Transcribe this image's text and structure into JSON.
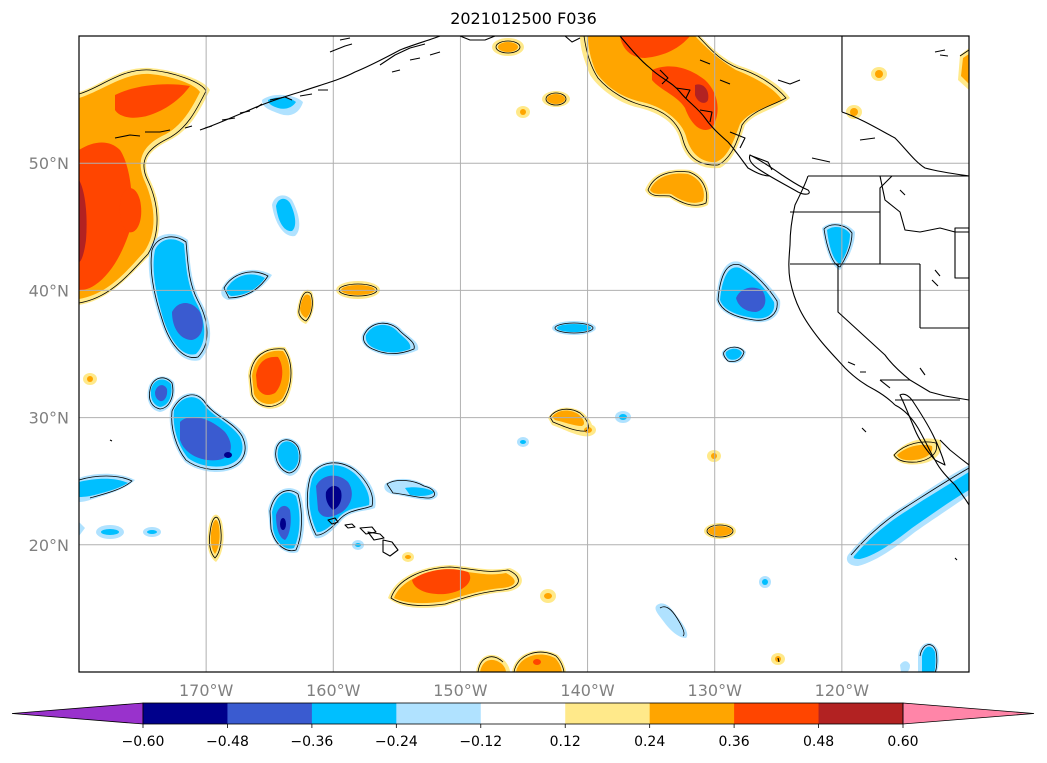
{
  "title": "2021012500 F036",
  "map": {
    "lon_range": [
      -180,
      -110
    ],
    "lat_range": [
      10,
      60
    ],
    "grid": true,
    "lat_ticks": [
      {
        "value": 20,
        "label": "20°N"
      },
      {
        "value": 30,
        "label": "30°N"
      },
      {
        "value": 40,
        "label": "40°N"
      },
      {
        "value": 50,
        "label": "50°N"
      }
    ],
    "lon_ticks": [
      {
        "value": -170,
        "label": "170°W"
      },
      {
        "value": -160,
        "label": "160°W"
      },
      {
        "value": -150,
        "label": "150°W"
      },
      {
        "value": -140,
        "label": "140°W"
      },
      {
        "value": -130,
        "label": "130°W"
      },
      {
        "value": -120,
        "label": "120°W"
      }
    ]
  },
  "colorbar": {
    "levels": [
      "−0.60",
      "−0.48",
      "−0.36",
      "−0.24",
      "−0.12",
      "0.12",
      "0.24",
      "0.36",
      "0.48",
      "0.60"
    ],
    "colors": [
      "#9932cc",
      "#00008b",
      "#3a5bd0",
      "#00bfff",
      "#b0e2ff",
      "#ffffff",
      "#ffe98a",
      "#ffa500",
      "#ff4500",
      "#b22222",
      "#ff85a8"
    ]
  },
  "colors": {
    "neg_1": "#b0e2ff",
    "neg_2": "#00bfff",
    "neg_3": "#3a5bd0",
    "neg_4": "#00008b",
    "pos_1": "#ffe98a",
    "pos_2": "#ffa500",
    "pos_3": "#ff4500",
    "pos_4": "#b22222"
  }
}
